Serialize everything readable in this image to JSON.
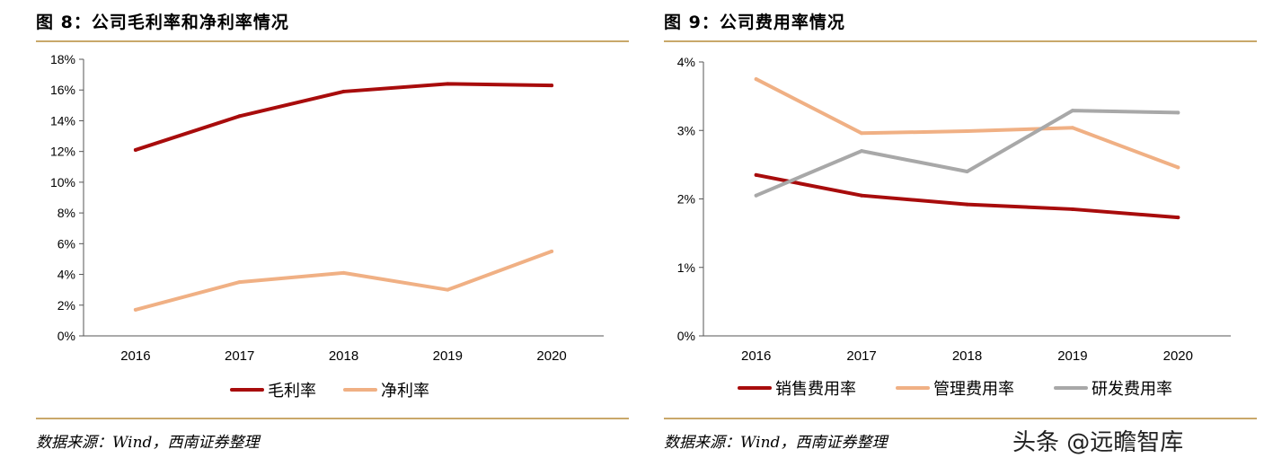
{
  "left": {
    "title": "图 8：公司毛利率和净利率情况",
    "source": "数据来源：Wind，西南证券整理"
  },
  "right": {
    "title": "图 9：公司费用率情况",
    "source": "数据来源：Wind，西南证券整理"
  },
  "watermark": "头条 @远瞻智库",
  "chart_data": [
    {
      "type": "line",
      "x": [
        "2016",
        "2017",
        "2018",
        "2019",
        "2020"
      ],
      "yticks": [
        "0%",
        "2%",
        "4%",
        "6%",
        "8%",
        "10%",
        "12%",
        "14%",
        "16%",
        "18%"
      ],
      "ylim": [
        0,
        18
      ],
      "grid": false,
      "legend": "bottom",
      "series": [
        {
          "name": "毛利率",
          "color": "#a80c0c",
          "values": [
            12.1,
            14.3,
            15.9,
            16.4,
            16.3
          ]
        },
        {
          "name": "净利率",
          "color": "#f0b084",
          "values": [
            1.7,
            3.5,
            4.1,
            3.0,
            5.5
          ]
        }
      ]
    },
    {
      "type": "line",
      "x": [
        "2016",
        "2017",
        "2018",
        "2019",
        "2020"
      ],
      "yticks": [
        "0%",
        "1%",
        "2%",
        "3%",
        "4%"
      ],
      "ylim": [
        0,
        4
      ],
      "grid": false,
      "legend": "bottom",
      "series": [
        {
          "name": "销售费用率",
          "color": "#a80c0c",
          "values": [
            2.35,
            2.05,
            1.92,
            1.85,
            1.73
          ]
        },
        {
          "name": "管理费用率",
          "color": "#f0b084",
          "values": [
            3.75,
            2.96,
            2.99,
            3.04,
            2.46
          ]
        },
        {
          "name": "研发费用率",
          "color": "#a8a8a8",
          "values": [
            2.05,
            2.7,
            2.4,
            3.29,
            3.26
          ]
        }
      ]
    }
  ]
}
